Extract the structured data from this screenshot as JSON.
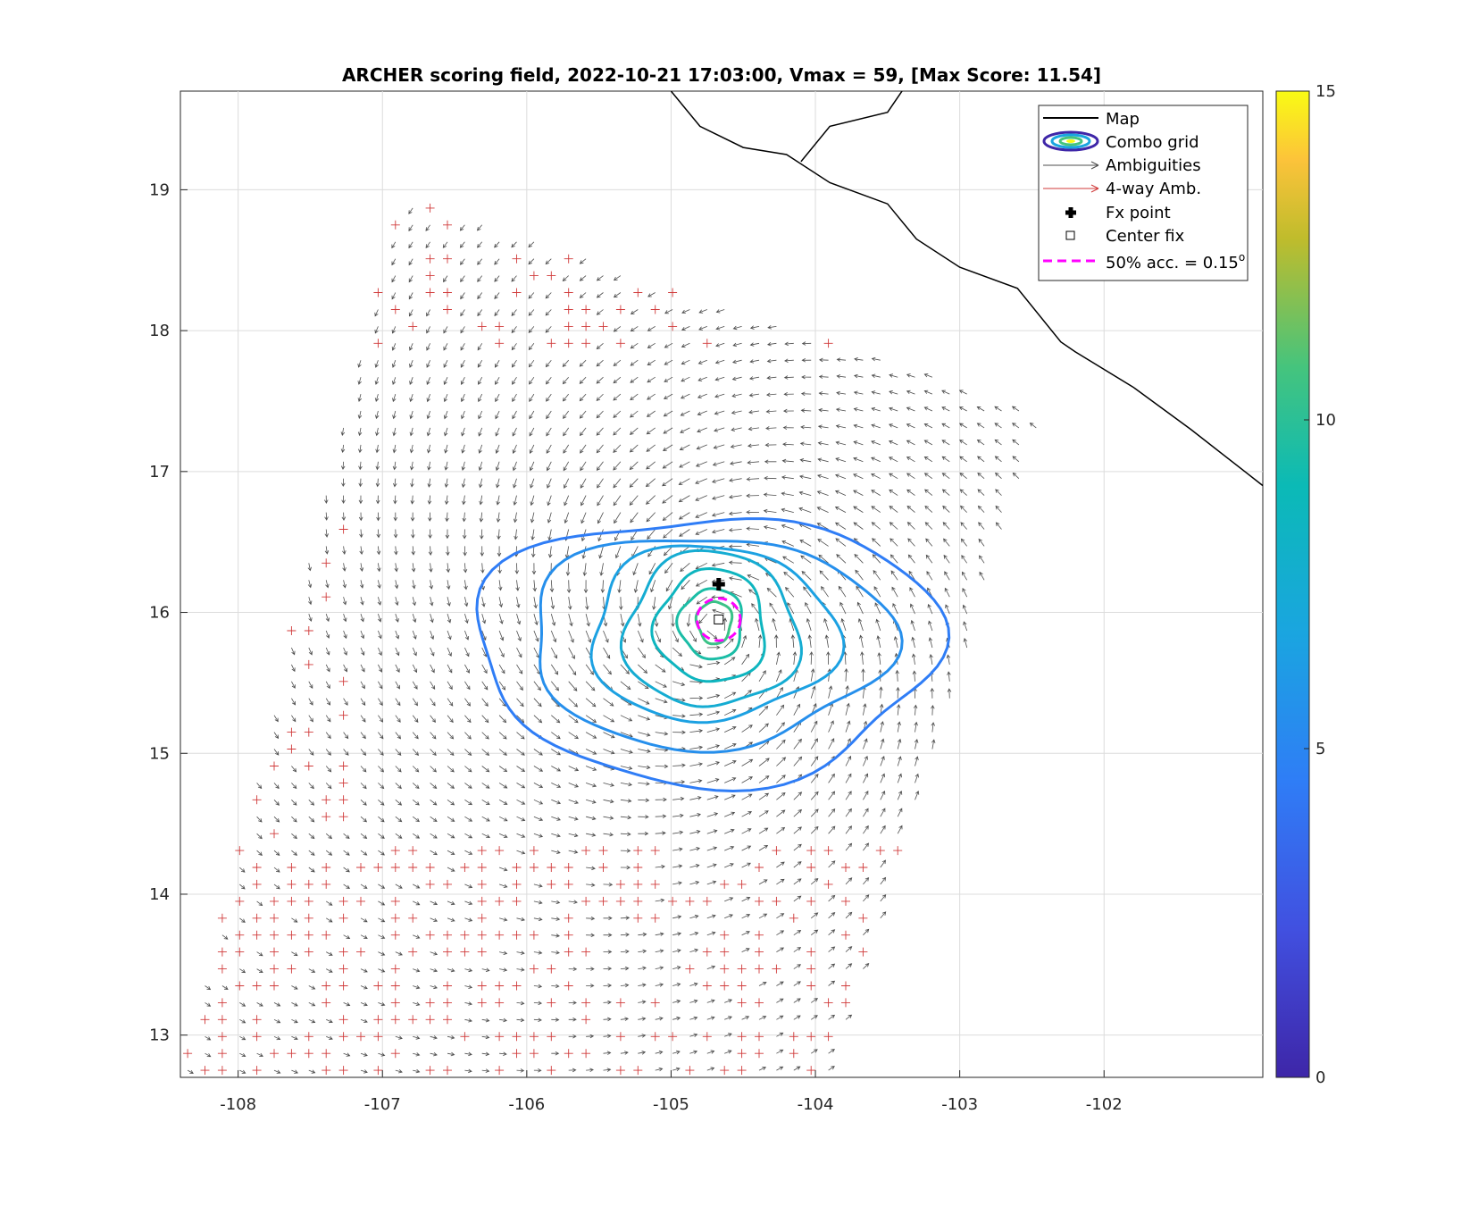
{
  "chart_data": {
    "type": "contour",
    "title": "ARCHER scoring field, 2022-10-21 17:03:00, Vmax = 59, [Max Score: 11.54]",
    "xlim": [
      -108.4,
      -100.9
    ],
    "ylim": [
      12.7,
      19.7
    ],
    "xticks": [
      -108,
      -107,
      -106,
      -105,
      -104,
      -103,
      -102
    ],
    "yticks": [
      13,
      14,
      15,
      16,
      17,
      18,
      19
    ],
    "colorbar": {
      "min": 0,
      "max": 15,
      "ticks": [
        0,
        5,
        10,
        15
      ]
    },
    "storm_center": {
      "lon": -104.7,
      "lat": 15.9
    },
    "fx_point": {
      "lon": -104.67,
      "lat": 16.2
    },
    "center_fix": {
      "lon": -104.67,
      "lat": 15.95
    },
    "accuracy_radius_deg": 0.15,
    "contours": [
      {
        "level": 4.5,
        "rx": 1.6,
        "ry": 0.95,
        "cx": -104.75,
        "cy": 15.75
      },
      {
        "level": 5.5,
        "rx": 1.25,
        "ry": 0.75,
        "cx": -104.75,
        "cy": 15.8
      },
      {
        "level": 6.5,
        "rx": 0.85,
        "ry": 0.62,
        "cx": -104.72,
        "cy": 15.85
      },
      {
        "level": 7.5,
        "rx": 0.6,
        "ry": 0.55,
        "cx": -104.72,
        "cy": 15.87
      },
      {
        "level": 8.5,
        "rx": 0.38,
        "ry": 0.4,
        "cx": -104.72,
        "cy": 15.9
      },
      {
        "level": 9.5,
        "rx": 0.22,
        "ry": 0.25,
        "cx": -104.72,
        "cy": 15.92
      },
      {
        "level": 10.5,
        "rx": 0.12,
        "ry": 0.15,
        "cx": -104.7,
        "cy": 15.93
      }
    ],
    "legend": [
      {
        "label": "Map",
        "style": "black-line"
      },
      {
        "label": "Combo grid",
        "style": "contour-ellipse"
      },
      {
        "label": "Ambiguities",
        "style": "gray-arrow"
      },
      {
        "label": "4-way Amb.",
        "style": "red-arrow"
      },
      {
        "label": "Fx point",
        "style": "black-plus"
      },
      {
        "label": "Center fix",
        "style": "open-square"
      },
      {
        "label": "50% acc. = 0.15",
        "superscript": "o",
        "style": "magenta-dash"
      }
    ]
  },
  "colors": {
    "ambiguity": "#4d4d4d",
    "four_way": "#d03a3a",
    "map": "#000000",
    "accuracy": "#ff00ff"
  }
}
